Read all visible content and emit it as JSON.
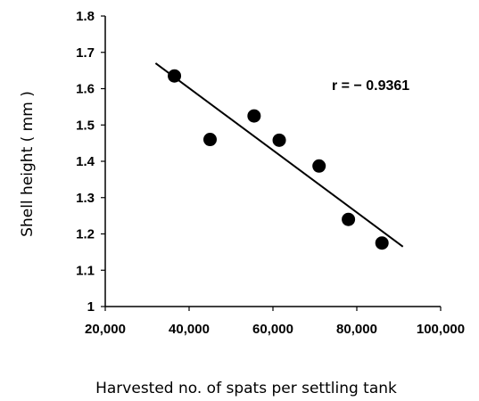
{
  "chart_data": {
    "type": "scatter",
    "xlabel": "Harvested no. of spats per settling tank",
    "ylabel": "Shell height ( mm )",
    "xlim": [
      20000,
      100000
    ],
    "ylim": [
      1.0,
      1.8
    ],
    "x_ticks": [
      20000,
      40000,
      60000,
      80000,
      100000
    ],
    "x_tick_labels": [
      "20,000",
      "40,000",
      "60,000",
      "80,000",
      "100,000"
    ],
    "y_ticks": [
      1.0,
      1.1,
      1.2,
      1.3,
      1.4,
      1.5,
      1.6,
      1.7,
      1.8
    ],
    "y_tick_labels": [
      "1",
      "1.1",
      "1.2",
      "1.3",
      "1.4",
      "1.5",
      "1.6",
      "1.7",
      "1.8"
    ],
    "grid": false,
    "legend": "none",
    "series": [
      {
        "points": [
          {
            "x": 36500,
            "y": 1.635
          },
          {
            "x": 45000,
            "y": 1.46
          },
          {
            "x": 55500,
            "y": 1.525
          },
          {
            "x": 61500,
            "y": 1.458
          },
          {
            "x": 71000,
            "y": 1.387
          },
          {
            "x": 78000,
            "y": 1.24
          },
          {
            "x": 86000,
            "y": 1.175
          }
        ]
      }
    ],
    "trend_line": {
      "x": [
        32000,
        91000
      ],
      "y": [
        1.67,
        1.165
      ]
    },
    "annotations": [
      {
        "text": "r = − 0.9361"
      }
    ]
  }
}
